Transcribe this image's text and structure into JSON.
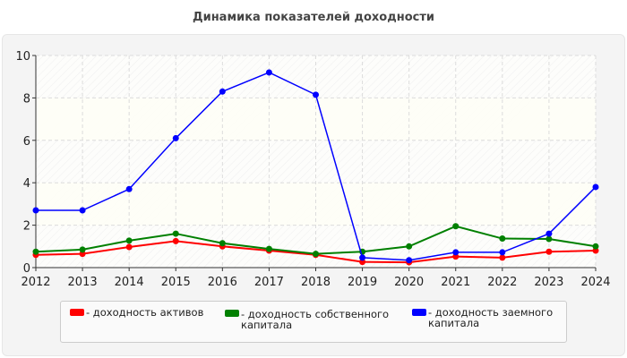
{
  "chart_data": {
    "type": "line",
    "title": "Динамика показателей доходности",
    "x": [
      2012,
      2013,
      2014,
      2015,
      2016,
      2017,
      2018,
      2019,
      2020,
      2021,
      2022,
      2023,
      2024
    ],
    "ylim": [
      0,
      10
    ],
    "yticks": [
      0,
      2,
      4,
      6,
      8,
      10
    ],
    "grid": true,
    "legend_placement": "bottom",
    "series": [
      {
        "name": "- доходность активов",
        "color": "#ff0000",
        "values": [
          0.6,
          0.65,
          0.97,
          1.25,
          1.0,
          0.8,
          0.6,
          0.27,
          0.25,
          0.52,
          0.47,
          0.75,
          0.8
        ]
      },
      {
        "name": "- доходность собственного капитала",
        "color": "#008000",
        "values": [
          0.75,
          0.85,
          1.27,
          1.6,
          1.15,
          0.88,
          0.65,
          0.75,
          1.0,
          1.95,
          1.37,
          1.35,
          1.0
        ]
      },
      {
        "name": "- доходность заемного капитала",
        "color": "#0000ff",
        "values": [
          2.7,
          2.7,
          3.7,
          6.1,
          8.3,
          9.2,
          8.15,
          0.47,
          0.35,
          0.72,
          0.72,
          1.6,
          3.8
        ]
      }
    ]
  }
}
